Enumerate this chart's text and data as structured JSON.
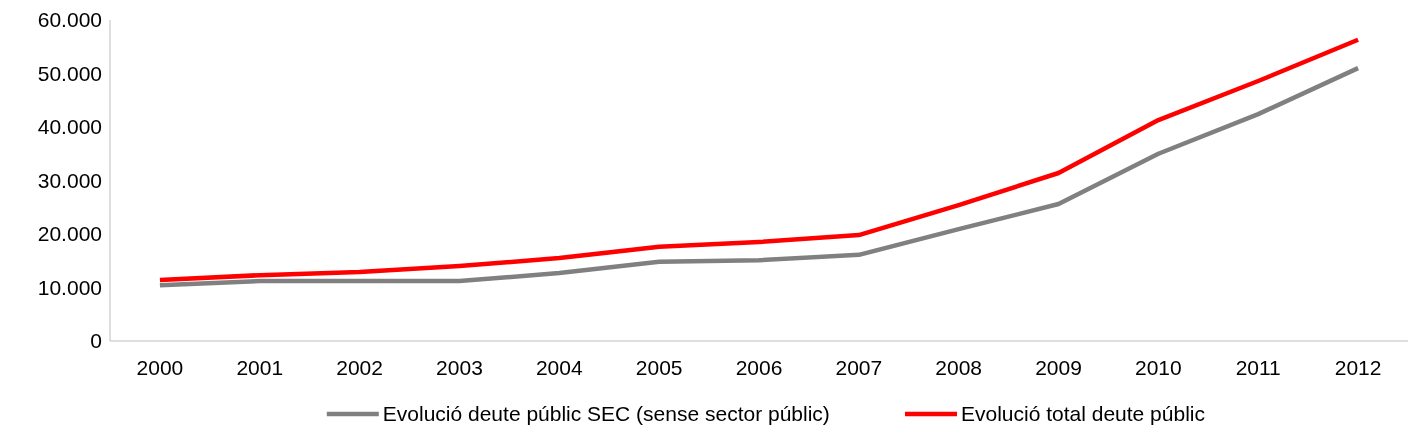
{
  "chart_data": {
    "type": "line",
    "categories": [
      "2000",
      "2001",
      "2002",
      "2003",
      "2004",
      "2005",
      "2006",
      "2007",
      "2008",
      "2009",
      "2010",
      "2011",
      "2012"
    ],
    "series": [
      {
        "name": "Evolució deute públic SEC (sense sector públic)",
        "color": "#808080",
        "values": [
          10400,
          11200,
          11200,
          11200,
          12700,
          14800,
          15100,
          16100,
          20900,
          25600,
          35000,
          42400,
          51000
        ]
      },
      {
        "name": "Evolució total deute públic",
        "color": "#ff0000",
        "values": [
          11400,
          12300,
          12900,
          14000,
          15500,
          17600,
          18500,
          19800,
          25400,
          31400,
          41300,
          48600,
          56300
        ]
      }
    ],
    "ylim": [
      0,
      60000
    ],
    "yticks": [
      {
        "value": 0,
        "label": "0"
      },
      {
        "value": 10000,
        "label": "10.000"
      },
      {
        "value": 20000,
        "label": "20.000"
      },
      {
        "value": 30000,
        "label": "30.000"
      },
      {
        "value": 40000,
        "label": "40.000"
      },
      {
        "value": 50000,
        "label": "50.000"
      },
      {
        "value": 60000,
        "label": "60.000"
      }
    ],
    "legend": "bottom",
    "marker": "none",
    "line_style": "solid"
  }
}
